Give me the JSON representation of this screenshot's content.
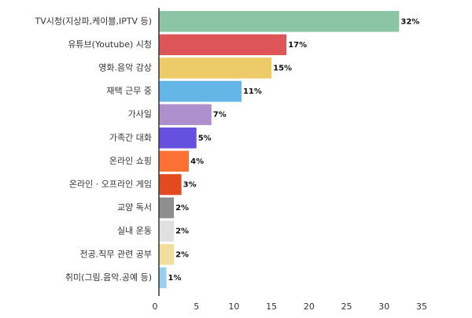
{
  "chart_data": {
    "type": "bar",
    "orientation": "horizontal",
    "categories": [
      "TV시청(지상파,케이블,IPTV 등)",
      "유튜브(Youtube) 시청",
      "영화.음악 감상",
      "재택 근무 중",
      "가사일",
      "가족간 대화",
      "온라인 쇼핑",
      "온라인 · 오프라인 게임",
      "교양 독서",
      "실내 운동",
      "전공.직무 관련 공부",
      "취미(그림.음악.공예 등)"
    ],
    "values": [
      32,
      17,
      15,
      11,
      7,
      5,
      4,
      3,
      2,
      2,
      2,
      1
    ],
    "value_labels": [
      "32%",
      "17%",
      "15%",
      "11%",
      "7%",
      "5%",
      "4%",
      "3%",
      "2%",
      "2%",
      "2%",
      "1%"
    ],
    "colors": [
      "#8cc5a5",
      "#dd5559",
      "#eecb69",
      "#64b6e6",
      "#ad8fcd",
      "#6650de",
      "#fb7134",
      "#e34a20",
      "#8f8f8f",
      "#e0e0e0",
      "#f1de9f",
      "#99cfee"
    ],
    "xlim": [
      0,
      35
    ],
    "xticks": [
      "0",
      "5",
      "10",
      "15",
      "20",
      "25",
      "30",
      "35"
    ],
    "xtick_values": [
      0,
      5,
      10,
      15,
      20,
      25,
      30,
      35
    ],
    "grid": false,
    "title": "",
    "xlabel": "",
    "ylabel": ""
  }
}
